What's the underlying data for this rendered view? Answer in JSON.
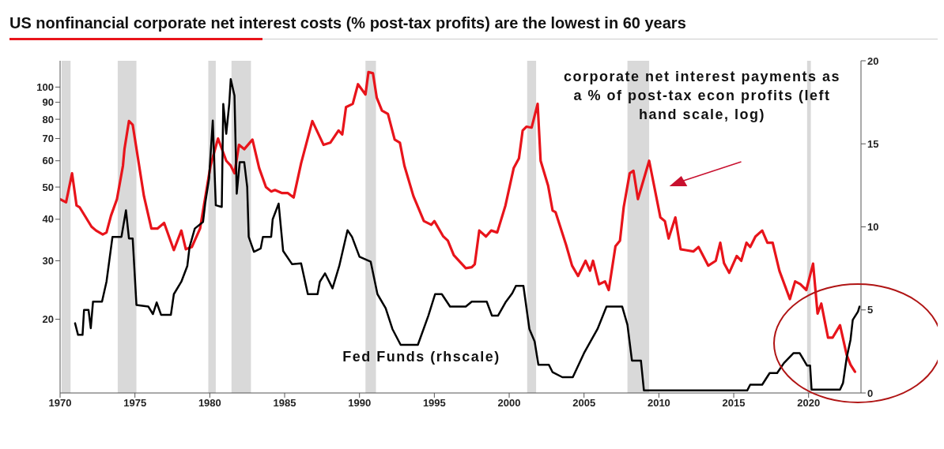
{
  "chart_data": {
    "type": "line",
    "title": "US nonfinancial corporate net interest costs (% post-tax profits) are the lowest in 60 years",
    "xlim": [
      1970,
      2023.5
    ],
    "xticks": [
      1970,
      1975,
      1980,
      1985,
      1990,
      1995,
      2000,
      2005,
      2010,
      2015,
      2020
    ],
    "ylim": [
      12,
      120
    ],
    "yticks": [
      20,
      30,
      40,
      50,
      60,
      70,
      80,
      90,
      100
    ],
    "log": "y",
    "y2lim": [
      0,
      20
    ],
    "y2ticks": [
      0,
      5,
      10,
      15,
      20
    ],
    "bands": [
      {
        "axis": "x",
        "from": 1970.1,
        "to": 1970.7,
        "color": "#d9d9d9"
      },
      {
        "axis": "x",
        "from": 1973.85,
        "to": 1975.1,
        "color": "#d9d9d9"
      },
      {
        "axis": "x",
        "from": 1979.9,
        "to": 1980.4,
        "color": "#d9d9d9"
      },
      {
        "axis": "x",
        "from": 1981.45,
        "to": 1982.75,
        "color": "#d9d9d9"
      },
      {
        "axis": "x",
        "from": 1990.4,
        "to": 1991.1,
        "color": "#d9d9d9"
      },
      {
        "axis": "x",
        "from": 2001.2,
        "to": 2001.8,
        "color": "#d9d9d9"
      },
      {
        "axis": "x",
        "from": 2007.9,
        "to": 2009.35,
        "color": "#d9d9d9"
      },
      {
        "axis": "x",
        "from": 2019.9,
        "to": 2020.15,
        "color": "#d9d9d9"
      }
    ],
    "series": [
      {
        "name": "corporate net interest payments as a % of post-tax econ profits (left hand scale, log)",
        "color": "#e8141b",
        "x": [
          1970.0,
          1970.4,
          1970.8,
          1971.1,
          1971.3,
          1972.1,
          1972.4,
          1972.85,
          1973.1,
          1973.4,
          1973.8,
          1974.2,
          1974.3,
          1974.6,
          1974.85,
          1975.6,
          1976.1,
          1976.5,
          1976.95,
          1977.6,
          1978.1,
          1978.4,
          1978.8,
          1979.35,
          1980.05,
          1980.55,
          1981.1,
          1981.4,
          1981.65,
          1981.95,
          1982.3,
          1982.85,
          1983.3,
          1983.75,
          1984.1,
          1984.35,
          1984.8,
          1985.2,
          1985.6,
          1986.1,
          1986.85,
          1987.6,
          1988.05,
          1988.6,
          1988.85,
          1989.1,
          1989.55,
          1989.9,
          1990.4,
          1990.6,
          1990.9,
          1991.15,
          1991.5,
          1991.9,
          1992.35,
          1992.7,
          1993.0,
          1993.6,
          1994.3,
          1994.8,
          1995.0,
          1995.6,
          1995.9,
          1996.3,
          1997.1,
          1997.5,
          1997.7,
          1998.0,
          1998.45,
          1998.8,
          1999.2,
          1999.75,
          2000.3,
          2000.65,
          2000.9,
          2001.15,
          2001.5,
          2001.9,
          2002.1,
          2002.6,
          2002.9,
          2003.1,
          2003.8,
          2004.2,
          2004.6,
          2005.1,
          2005.4,
          2005.6,
          2006.0,
          2006.4,
          2006.65,
          2007.1,
          2007.4,
          2007.65,
          2008.05,
          2008.3,
          2008.6,
          2009.35,
          2010.1,
          2010.4,
          2010.65,
          2011.1,
          2011.45,
          2011.8,
          2012.3,
          2012.65,
          2013.3,
          2013.8,
          2014.1,
          2014.35,
          2014.7,
          2015.2,
          2015.5,
          2015.85,
          2016.1,
          2016.45,
          2016.9,
          2017.25,
          2017.6,
          2018.05,
          2018.75,
          2019.1,
          2019.45,
          2019.85,
          2020.3,
          2020.6,
          2020.85,
          2021.3,
          2021.6,
          2022.1,
          2022.55,
          2022.8,
          2023.1
        ],
        "values": [
          46,
          45,
          55,
          44,
          43.5,
          38,
          37,
          36,
          36.5,
          41,
          46,
          58,
          65,
          79,
          77,
          47,
          37.5,
          37.5,
          39,
          32.3,
          37,
          32.5,
          33,
          37.5,
          58,
          70,
          60,
          58,
          55,
          67,
          65,
          69.5,
          57,
          50,
          48.5,
          49,
          48,
          48,
          46.5,
          59,
          79,
          67,
          68,
          74,
          72,
          87,
          89,
          102,
          95,
          111,
          110,
          93,
          85,
          83,
          69.5,
          68,
          58,
          47,
          39.5,
          38.5,
          39.5,
          35.5,
          34.5,
          31.2,
          28.5,
          28.7,
          29.3,
          37,
          35.5,
          37,
          36.5,
          44,
          57,
          61,
          74,
          76,
          75.5,
          89,
          60,
          50.5,
          42.5,
          42,
          33.5,
          29,
          27,
          30,
          28,
          30,
          25.5,
          26,
          24.5,
          33.2,
          34.5,
          43.5,
          55,
          56,
          46,
          60,
          40.5,
          39.5,
          35,
          40.5,
          32.5,
          32.3,
          32,
          33,
          29,
          30,
          34,
          29.5,
          27.6,
          31,
          30,
          34,
          33,
          35.5,
          37,
          34,
          34,
          28,
          23,
          26,
          25.5,
          24.5,
          29.4,
          20.8,
          22.3,
          17.6,
          17.6,
          19.2,
          15.6,
          14.6,
          13.9
        ]
      },
      {
        "name": "Fed Funds (rhscale)",
        "color": "#000000",
        "axis": "y2",
        "x": [
          1971.0,
          1971.2,
          1971.5,
          1971.6,
          1971.9,
          1972.05,
          1972.2,
          1972.8,
          1973.1,
          1973.5,
          1974.1,
          1974.4,
          1974.6,
          1974.85,
          1975.1,
          1975.9,
          1976.2,
          1976.45,
          1976.75,
          1977.4,
          1977.6,
          1978.1,
          1978.5,
          1978.65,
          1979.0,
          1979.55,
          1979.7,
          1979.95,
          1980.2,
          1980.4,
          1980.8,
          1980.9,
          1981.1,
          1981.3,
          1981.4,
          1981.65,
          1981.8,
          1982.0,
          1982.3,
          1982.5,
          1982.6,
          1982.95,
          1983.4,
          1983.55,
          1984.1,
          1984.2,
          1984.6,
          1984.9,
          1985.5,
          1986.1,
          1986.55,
          1987.2,
          1987.35,
          1987.7,
          1988.2,
          1988.65,
          1989.2,
          1989.5,
          1990.0,
          1990.75,
          1991.2,
          1991.75,
          1992.2,
          1992.75,
          1993.9,
          1994.6,
          1995.05,
          1995.5,
          1996.05,
          1997.1,
          1997.5,
          1998.5,
          1998.85,
          1999.25,
          1999.75,
          2000.2,
          2000.45,
          2000.95,
          2001.35,
          2001.7,
          2001.95,
          2002.65,
          2002.9,
          2003.55,
          2004.25,
          2005.0,
          2005.9,
          2006.5,
          2007.55,
          2007.9,
          2008.2,
          2008.8,
          2009.0,
          2015.9,
          2016.1,
          2016.9,
          2017.4,
          2017.9,
          2018.35,
          2019.0,
          2019.4,
          2019.9,
          2020.1,
          2020.2,
          2022.1,
          2022.3,
          2022.55,
          2022.8,
          2022.95,
          2023.3,
          2023.4
        ],
        "values": [
          4.2,
          3.5,
          3.5,
          5.0,
          5.0,
          3.9,
          5.5,
          5.5,
          6.7,
          9.4,
          9.4,
          11.0,
          9.3,
          9.3,
          5.3,
          5.2,
          4.75,
          5.45,
          4.7,
          4.7,
          5.95,
          6.7,
          7.65,
          8.8,
          9.9,
          10.3,
          11.45,
          12.9,
          16.4,
          11.3,
          11.2,
          17.4,
          15.6,
          17.4,
          18.9,
          17.9,
          12.0,
          13.9,
          13.9,
          12.4,
          9.4,
          8.5,
          8.7,
          9.4,
          9.4,
          10.45,
          11.4,
          8.55,
          7.75,
          7.8,
          5.95,
          5.95,
          6.7,
          7.2,
          6.3,
          7.65,
          9.8,
          9.4,
          8.2,
          7.9,
          5.95,
          5.1,
          3.85,
          2.9,
          2.9,
          4.65,
          5.95,
          5.95,
          5.2,
          5.2,
          5.5,
          5.5,
          4.65,
          4.65,
          5.45,
          6.0,
          6.45,
          6.45,
          3.85,
          3.1,
          1.7,
          1.7,
          1.25,
          0.95,
          0.95,
          2.4,
          3.85,
          5.2,
          5.2,
          4.1,
          1.95,
          1.95,
          0.15,
          0.15,
          0.5,
          0.5,
          1.2,
          1.2,
          1.8,
          2.4,
          2.4,
          1.65,
          1.65,
          0.2,
          0.2,
          0.6,
          2.15,
          3.2,
          4.4,
          4.9,
          5.2
        ]
      }
    ]
  }
}
